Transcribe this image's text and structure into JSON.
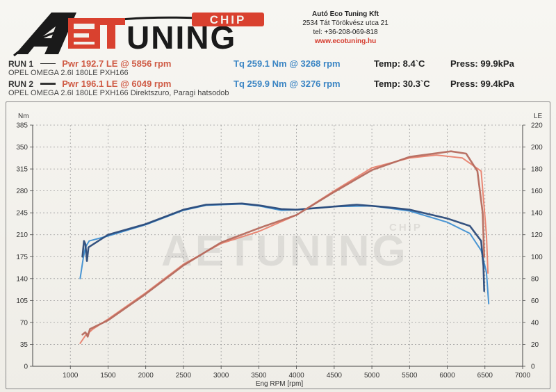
{
  "header": {
    "logo": {
      "brand": "AETUNING",
      "tag": "CHIP"
    },
    "company": {
      "name": "Autó Eco Tuning Kft",
      "address": "2534 Tát Törökvész utca 21",
      "phone": "tel: +36-208-069-818",
      "web": "www.ecotuning.hu"
    }
  },
  "runs": [
    {
      "label": "RUN 1",
      "power": "Pwr  192.7 LE @ 5856 rpm",
      "torque": "Tq 259.1 Nm @ 3268 rpm",
      "temp": "Temp: 8.4`C",
      "press": "Press: 99.9kPa",
      "car": "OPEL OMEGA 2.6I 180LE PXH166"
    },
    {
      "label": "RUN 2",
      "power": "Pwr  196.1 LE @ 6049 rpm",
      "torque": "Tq 259.9 Nm @ 3276 rpm",
      "temp": "Temp: 30.3`C",
      "press": "Press: 99.4kPa",
      "car": "OPEL OMEGA 2.6I 180LE PXH166 Direktszuro, Paragi hatsodob"
    }
  ],
  "colors": {
    "power_run1": "#e8816e",
    "power_run2": "#b56a5e",
    "torque_run1": "#3f8fd2",
    "torque_run2": "#2a4a7a",
    "grid": "#9a9a9a"
  },
  "chart_data": {
    "type": "line",
    "xlabel": "Eng RPM [rpm]",
    "ylabel_left": "Nm",
    "ylabel_right": "LE",
    "xlim": [
      500,
      7000
    ],
    "ylim_left": [
      0,
      385
    ],
    "ylim_right": [
      0,
      220
    ],
    "x_ticks": [
      1000,
      1500,
      2000,
      2500,
      3000,
      3500,
      4000,
      4500,
      5000,
      5500,
      6000,
      6500,
      7000
    ],
    "y_left_ticks": [
      0,
      35,
      70,
      105,
      140,
      175,
      210,
      245,
      280,
      315,
      350,
      385
    ],
    "y_right_ticks": [
      0,
      20,
      40,
      60,
      80,
      100,
      120,
      140,
      160,
      180,
      200,
      220
    ],
    "grid": true,
    "series": [
      {
        "key": "torque_run1",
        "axis": "left",
        "points": [
          [
            1130,
            140
          ],
          [
            1170,
            172
          ],
          [
            1200,
            190
          ],
          [
            1250,
            200
          ],
          [
            1500,
            208
          ],
          [
            2000,
            226
          ],
          [
            2500,
            249
          ],
          [
            2800,
            257
          ],
          [
            3268,
            259.1
          ],
          [
            3500,
            256
          ],
          [
            3800,
            249
          ],
          [
            4000,
            250
          ],
          [
            4500,
            255
          ],
          [
            5000,
            256
          ],
          [
            5500,
            248
          ],
          [
            6000,
            230
          ],
          [
            6300,
            212
          ],
          [
            6450,
            185
          ],
          [
            6520,
            150
          ],
          [
            6550,
            100
          ]
        ]
      },
      {
        "key": "torque_run2",
        "axis": "left",
        "points": [
          [
            1160,
            175
          ],
          [
            1180,
            200
          ],
          [
            1200,
            195
          ],
          [
            1220,
            168
          ],
          [
            1240,
            190
          ],
          [
            1500,
            210
          ],
          [
            2000,
            227
          ],
          [
            2500,
            250
          ],
          [
            2800,
            258
          ],
          [
            3276,
            259.9
          ],
          [
            3500,
            257
          ],
          [
            3800,
            251
          ],
          [
            4000,
            250
          ],
          [
            4500,
            255
          ],
          [
            4800,
            258
          ],
          [
            5200,
            254
          ],
          [
            5500,
            250
          ],
          [
            6000,
            236
          ],
          [
            6300,
            224
          ],
          [
            6450,
            200
          ],
          [
            6480,
            160
          ],
          [
            6490,
            120
          ]
        ]
      },
      {
        "key": "power_run1",
        "axis": "right",
        "points": [
          [
            1130,
            21
          ],
          [
            1200,
            28
          ],
          [
            1300,
            34
          ],
          [
            1500,
            43
          ],
          [
            2000,
            67
          ],
          [
            2500,
            93
          ],
          [
            3000,
            112
          ],
          [
            3500,
            123
          ],
          [
            4000,
            138
          ],
          [
            4500,
            160
          ],
          [
            5000,
            181
          ],
          [
            5500,
            190
          ],
          [
            5856,
            192.7
          ],
          [
            6200,
            190
          ],
          [
            6450,
            178
          ],
          [
            6520,
            120
          ],
          [
            6540,
            85
          ]
        ]
      },
      {
        "key": "power_run2",
        "axis": "right",
        "points": [
          [
            1160,
            29
          ],
          [
            1200,
            31
          ],
          [
            1230,
            27
          ],
          [
            1260,
            34
          ],
          [
            1500,
            42
          ],
          [
            2000,
            66
          ],
          [
            2500,
            92
          ],
          [
            3000,
            113
          ],
          [
            3500,
            126
          ],
          [
            4000,
            138
          ],
          [
            4500,
            159
          ],
          [
            5000,
            179
          ],
          [
            5500,
            191
          ],
          [
            6049,
            196.1
          ],
          [
            6250,
            194
          ],
          [
            6400,
            178
          ],
          [
            6470,
            140
          ],
          [
            6490,
            100
          ]
        ]
      }
    ]
  }
}
